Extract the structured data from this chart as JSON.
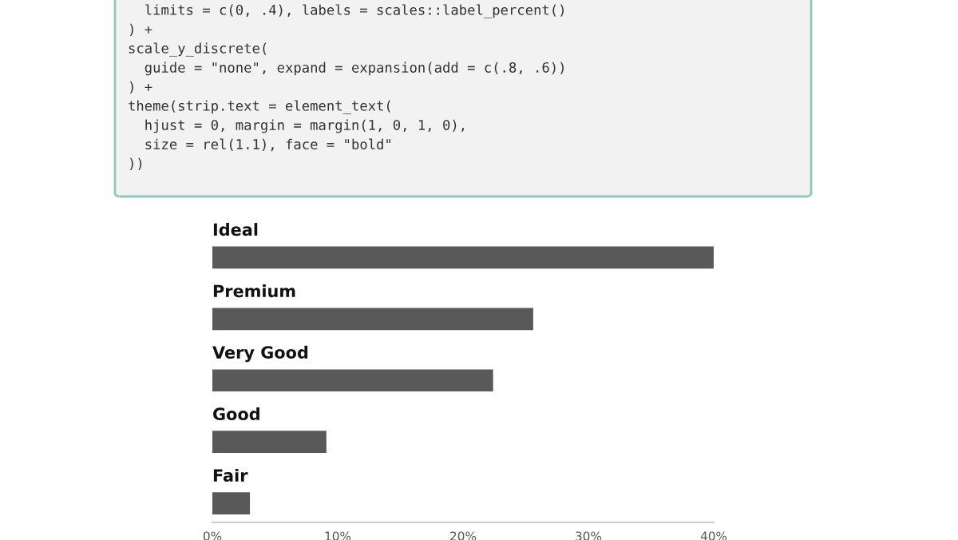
{
  "chart_data": {
    "type": "bar",
    "orientation": "horizontal",
    "categories": [
      "Ideal",
      "Premium",
      "Very Good",
      "Good",
      "Fair"
    ],
    "values": [
      40.0,
      25.6,
      22.4,
      9.1,
      3.0
    ],
    "color": "#595959",
    "xlim": [
      0,
      40
    ],
    "xticks": [
      {
        "value": 0,
        "label": "0%"
      },
      {
        "value": 10,
        "label": "10%"
      },
      {
        "value": 20,
        "label": "20%"
      },
      {
        "value": 30,
        "label": "30%"
      },
      {
        "value": 40,
        "label": "40%"
      }
    ],
    "tick_labels": "x",
    "grid": false,
    "legend": false,
    "annotations": [
      "  limits = c(0, .4), labels = scales::label_percent()",
      ") +",
      "scale_y_discrete(",
      "  guide = \"none\", expand = expansion(add = c(.8, .6))",
      ") +",
      "theme(strip.text = element_text(",
      "  hjust = 0, margin = margin(1, 0, 1, 0),",
      "  size = rel(1.1), face = \"bold\"",
      "))"
    ]
  }
}
